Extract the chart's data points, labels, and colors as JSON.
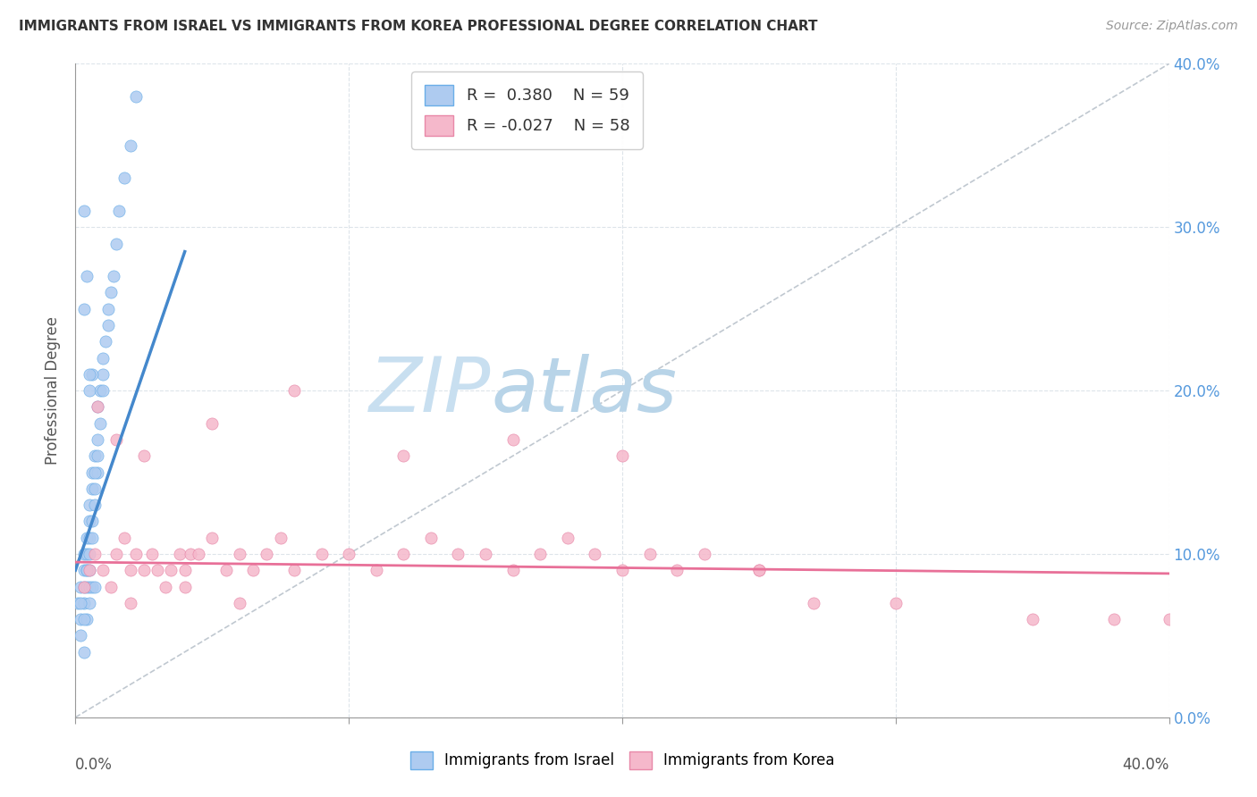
{
  "title": "IMMIGRANTS FROM ISRAEL VS IMMIGRANTS FROM KOREA PROFESSIONAL DEGREE CORRELATION CHART",
  "source": "Source: ZipAtlas.com",
  "ylabel": "Professional Degree",
  "r_israel": 0.38,
  "n_israel": 59,
  "r_korea": -0.027,
  "n_korea": 58,
  "legend_israel": "Immigrants from Israel",
  "legend_korea": "Immigrants from Korea",
  "israel_dot_color": "#aecbf0",
  "israel_dot_edge": "#6aaee8",
  "israel_line_color": "#4488cc",
  "korea_dot_color": "#f5b8cb",
  "korea_dot_edge": "#e888a8",
  "korea_line_color": "#e87098",
  "diagonal_color": "#c0c8d0",
  "background_color": "#ffffff",
  "grid_color": "#dde4ea",
  "watermark_zip_color": "#c8dff0",
  "watermark_atlas_color": "#b8d4e8",
  "right_tick_color": "#5599dd",
  "xmin": 0.0,
  "xmax": 0.4,
  "ymin": 0.0,
  "ymax": 0.4,
  "ytick_vals": [
    0.0,
    0.1,
    0.2,
    0.3,
    0.4
  ],
  "ytick_labels": [
    "0.0%",
    "10.0%",
    "20.0%",
    "30.0%",
    "40.0%"
  ],
  "xtick_vals": [
    0.0,
    0.1,
    0.2,
    0.3,
    0.4
  ],
  "israel_x": [
    0.001,
    0.002,
    0.002,
    0.003,
    0.003,
    0.003,
    0.003,
    0.004,
    0.004,
    0.004,
    0.004,
    0.005,
    0.005,
    0.005,
    0.005,
    0.005,
    0.006,
    0.006,
    0.006,
    0.006,
    0.007,
    0.007,
    0.007,
    0.008,
    0.008,
    0.008,
    0.009,
    0.009,
    0.01,
    0.01,
    0.01,
    0.011,
    0.012,
    0.012,
    0.013,
    0.014,
    0.015,
    0.016,
    0.018,
    0.02,
    0.022,
    0.005,
    0.006,
    0.007,
    0.003,
    0.004,
    0.003,
    0.005,
    0.002,
    0.004,
    0.003,
    0.005,
    0.006,
    0.004,
    0.003,
    0.002,
    0.007,
    0.008,
    0.005
  ],
  "israel_y": [
    0.07,
    0.06,
    0.08,
    0.09,
    0.1,
    0.08,
    0.07,
    0.09,
    0.1,
    0.11,
    0.08,
    0.11,
    0.12,
    0.1,
    0.09,
    0.13,
    0.14,
    0.12,
    0.11,
    0.15,
    0.16,
    0.14,
    0.13,
    0.17,
    0.15,
    0.19,
    0.2,
    0.18,
    0.22,
    0.2,
    0.21,
    0.23,
    0.25,
    0.24,
    0.26,
    0.27,
    0.29,
    0.31,
    0.33,
    0.35,
    0.38,
    0.2,
    0.21,
    0.15,
    0.25,
    0.27,
    0.31,
    0.08,
    0.05,
    0.06,
    0.04,
    0.07,
    0.08,
    0.09,
    0.06,
    0.07,
    0.08,
    0.16,
    0.21
  ],
  "korea_x": [
    0.003,
    0.005,
    0.007,
    0.01,
    0.013,
    0.015,
    0.018,
    0.02,
    0.022,
    0.025,
    0.028,
    0.03,
    0.033,
    0.035,
    0.038,
    0.04,
    0.042,
    0.045,
    0.05,
    0.055,
    0.06,
    0.065,
    0.07,
    0.075,
    0.08,
    0.09,
    0.1,
    0.11,
    0.12,
    0.13,
    0.14,
    0.15,
    0.16,
    0.17,
    0.18,
    0.19,
    0.2,
    0.21,
    0.22,
    0.23,
    0.25,
    0.27,
    0.3,
    0.35,
    0.38,
    0.4,
    0.008,
    0.015,
    0.025,
    0.05,
    0.08,
    0.12,
    0.16,
    0.2,
    0.25,
    0.02,
    0.04,
    0.06
  ],
  "korea_y": [
    0.08,
    0.09,
    0.1,
    0.09,
    0.08,
    0.1,
    0.11,
    0.09,
    0.1,
    0.09,
    0.1,
    0.09,
    0.08,
    0.09,
    0.1,
    0.09,
    0.1,
    0.1,
    0.11,
    0.09,
    0.1,
    0.09,
    0.1,
    0.11,
    0.09,
    0.1,
    0.1,
    0.09,
    0.1,
    0.11,
    0.1,
    0.1,
    0.09,
    0.1,
    0.11,
    0.1,
    0.09,
    0.1,
    0.09,
    0.1,
    0.09,
    0.07,
    0.07,
    0.06,
    0.06,
    0.06,
    0.19,
    0.17,
    0.16,
    0.18,
    0.2,
    0.16,
    0.17,
    0.16,
    0.09,
    0.07,
    0.08,
    0.07
  ],
  "israel_line_x0": 0.0,
  "israel_line_x1": 0.04,
  "israel_line_y0": 0.09,
  "israel_line_y1": 0.285,
  "korea_line_x0": 0.0,
  "korea_line_x1": 0.4,
  "korea_line_y0": 0.095,
  "korea_line_y1": 0.088
}
